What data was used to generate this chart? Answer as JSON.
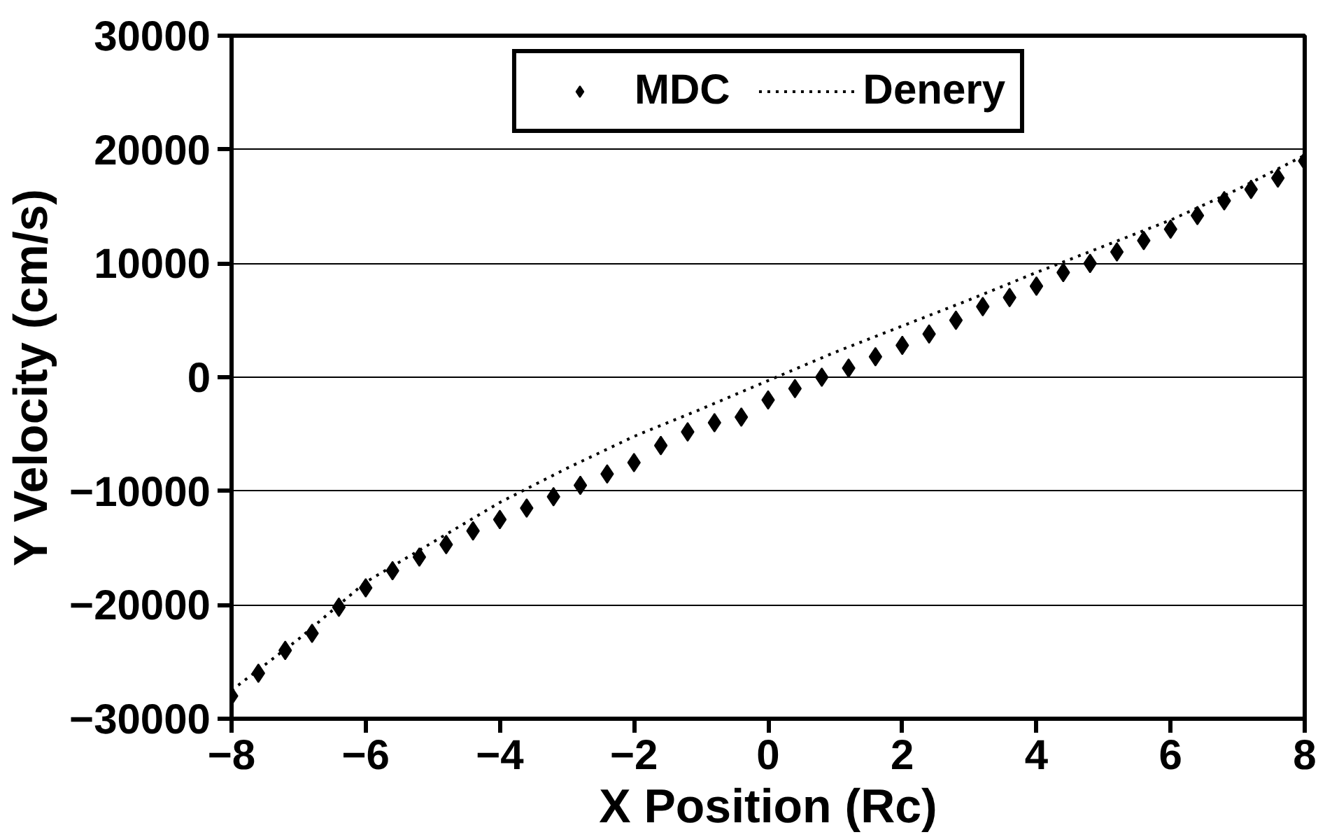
{
  "chart_data": {
    "type": "scatter",
    "xlabel": "X Position (Rc)",
    "ylabel": "Y Velocity (cm/s)",
    "xlim": [
      -8,
      8
    ],
    "xticks": [
      -8,
      -6,
      -4,
      -2,
      0,
      2,
      4,
      6,
      8
    ],
    "ylim": [
      -30000,
      30000
    ],
    "yticks": [
      -30000,
      -20000,
      -10000,
      0,
      10000,
      20000,
      30000
    ],
    "grid": "y",
    "legend": "top",
    "series": [
      {
        "name": "MDC",
        "marker": "diamond",
        "color": "#000000",
        "x": [
          -8,
          -7.6,
          -7.2,
          -6.8,
          -6.4,
          -6,
          -5.6,
          -5.2,
          -4.8,
          -4.4,
          -4,
          -3.6,
          -3.2,
          -2.8,
          -2.4,
          -2,
          -1.6,
          -1.2,
          -0.8,
          -0.4,
          0,
          0.4,
          0.8,
          1.2,
          1.6,
          2,
          2.4,
          2.8,
          3.2,
          3.6,
          4,
          4.4,
          4.8,
          5.2,
          5.6,
          6,
          6.4,
          6.8,
          7.2,
          7.6,
          8
        ],
        "values": [
          -28000,
          -26000,
          -24000,
          -22500,
          -20200,
          -18500,
          -17000,
          -15800,
          -14700,
          -13500,
          -12500,
          -11500,
          -10500,
          -9500,
          -8500,
          -7500,
          -6000,
          -4800,
          -4000,
          -3500,
          -2000,
          -1000,
          0,
          800,
          1800,
          2800,
          3800,
          5000,
          6200,
          7000,
          8000,
          9200,
          10000,
          11000,
          12000,
          13000,
          14200,
          15500,
          16500,
          17500,
          19000
        ]
      },
      {
        "name": "Denery",
        "type": "line",
        "line_style": "dotted",
        "color": "#000000",
        "x": [
          -8,
          -7,
          -6,
          -5,
          -4,
          -3,
          -2,
          -1,
          0,
          1,
          2,
          3,
          4,
          5,
          6,
          7,
          8
        ],
        "values": [
          -27500,
          -23000,
          -18000,
          -14500,
          -11000,
          -8000,
          -5200,
          -2800,
          -300,
          2200,
          4500,
          6800,
          9200,
          11500,
          13800,
          16500,
          19500
        ]
      }
    ]
  }
}
